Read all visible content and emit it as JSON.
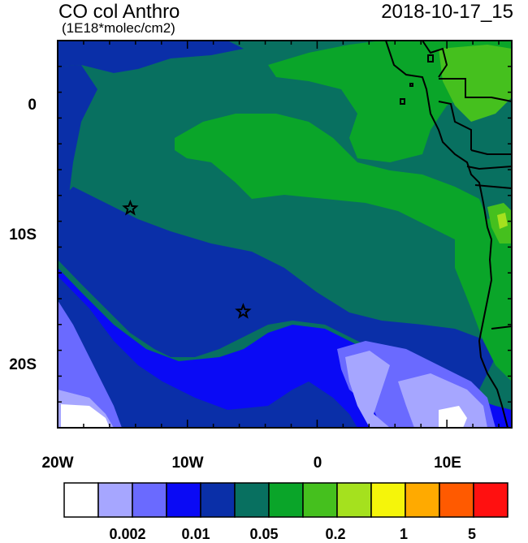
{
  "header": {
    "title": "CO col Anthro",
    "units": "(1E18*molec/cm2)",
    "datetime": "2018-10-17_15"
  },
  "map": {
    "region": "Southeast Atlantic / Southwest Africa",
    "lon_range": [
      -20,
      15
    ],
    "lat_range": [
      -25,
      5
    ],
    "y_ticks": [
      "0",
      "10S",
      "20S"
    ],
    "x_ticks": [
      "20W",
      "10W",
      "0",
      "10E"
    ],
    "markers": [
      {
        "name": "star-marker-1",
        "lon": -14.4,
        "lat": -8.0
      },
      {
        "name": "star-marker-2",
        "lon": -5.7,
        "lat": -16.0
      }
    ]
  },
  "colorbar": {
    "colors": [
      "#ffffff",
      "#a6a6ff",
      "#6a6aff",
      "#0a0af5",
      "#0a2fa8",
      "#087060",
      "#0aa529",
      "#45c01e",
      "#a5e11e",
      "#f5f50a",
      "#ffaa00",
      "#ff5a00",
      "#ff1010"
    ],
    "labels": [
      "0.002",
      "0.01",
      "0.05",
      "0.2",
      "1",
      "5"
    ]
  }
}
